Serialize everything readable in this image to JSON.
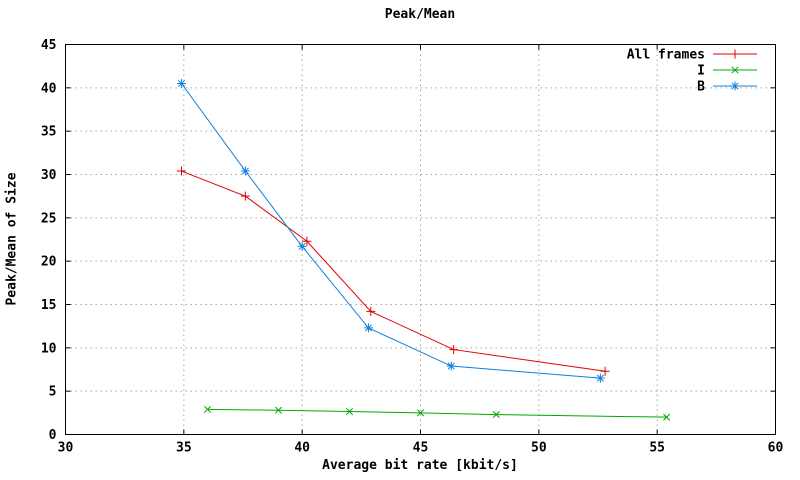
{
  "chart_data": {
    "type": "line",
    "title": "Peak/Mean",
    "xlabel": "Average bit rate [kbit/s]",
    "ylabel": "Peak/Mean of Size",
    "xlim": [
      30,
      60
    ],
    "ylim": [
      0,
      45
    ],
    "xticks": [
      30,
      35,
      40,
      45,
      50,
      55,
      60
    ],
    "yticks": [
      0,
      5,
      10,
      15,
      20,
      25,
      30,
      35,
      40,
      45
    ],
    "grid": true,
    "grid_color": "#a6a6a6",
    "border_color": "#000000",
    "legend_position": "top-right-inside",
    "series": [
      {
        "name": "All frames",
        "color": "#e10000",
        "marker": "plus",
        "points": [
          [
            34.9,
            30.4
          ],
          [
            37.6,
            27.5
          ],
          [
            40.2,
            22.3
          ],
          [
            42.9,
            14.2
          ],
          [
            46.4,
            9.8
          ],
          [
            52.8,
            7.3
          ]
        ]
      },
      {
        "name": "I",
        "color": "#00a800",
        "marker": "cross",
        "points": [
          [
            36.0,
            2.9
          ],
          [
            39.0,
            2.8
          ],
          [
            42.0,
            2.65
          ],
          [
            45.0,
            2.5
          ],
          [
            48.2,
            2.3
          ],
          [
            55.4,
            2.0
          ]
        ]
      },
      {
        "name": "B",
        "color": "#1080dc",
        "marker": "star",
        "points": [
          [
            34.9,
            40.5
          ],
          [
            37.6,
            30.4
          ],
          [
            40.0,
            21.7
          ],
          [
            42.8,
            12.3
          ],
          [
            46.3,
            7.9
          ],
          [
            52.6,
            6.5
          ]
        ]
      }
    ]
  }
}
